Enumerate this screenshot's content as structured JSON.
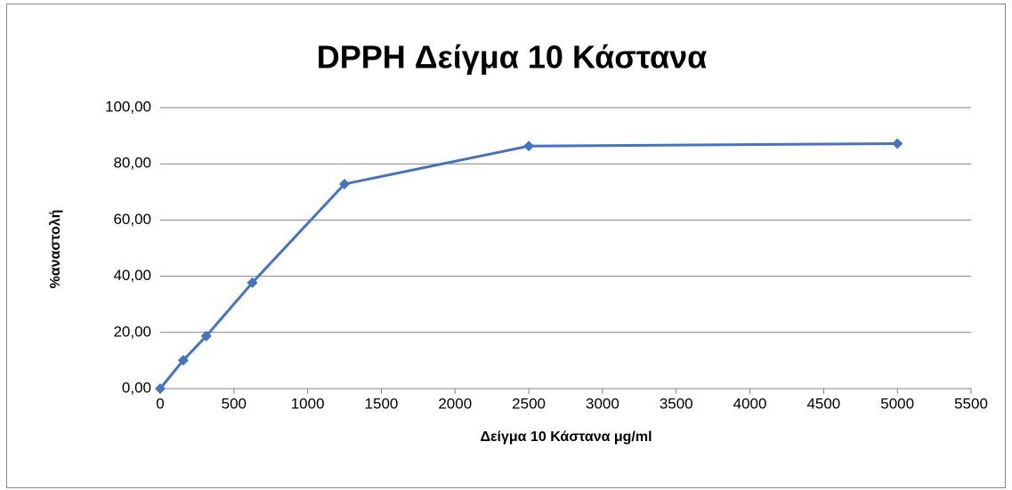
{
  "chart_data": {
    "type": "line",
    "title": "DPPH Δείγμα 10 Κάστανα",
    "x_label": "Δείγμα 10 Κάστανα μg/ml",
    "y_label": "%αναστολή",
    "x": [
      0,
      156.25,
      312.5,
      625,
      1250,
      2500,
      5000
    ],
    "series": [
      {
        "name": "%αναστολή",
        "color": "#4472c4",
        "values": [
          0,
          10.1,
          18.7,
          37.7,
          72.8,
          86.3,
          87.2
        ]
      }
    ],
    "xlim": [
      0,
      5500
    ],
    "xticks": [
      0,
      500,
      1000,
      1500,
      2000,
      2500,
      3000,
      3500,
      4000,
      4500,
      5000,
      5500
    ],
    "ylim": [
      0,
      100
    ],
    "yticks": [
      {
        "value": 0,
        "label": "0,00"
      },
      {
        "value": 20,
        "label": "20,00"
      },
      {
        "value": 40,
        "label": "40,00"
      },
      {
        "value": 60,
        "label": "60,00"
      },
      {
        "value": 80,
        "label": "80,00"
      },
      {
        "value": 100,
        "label": "100,00"
      }
    ],
    "grid": true
  }
}
